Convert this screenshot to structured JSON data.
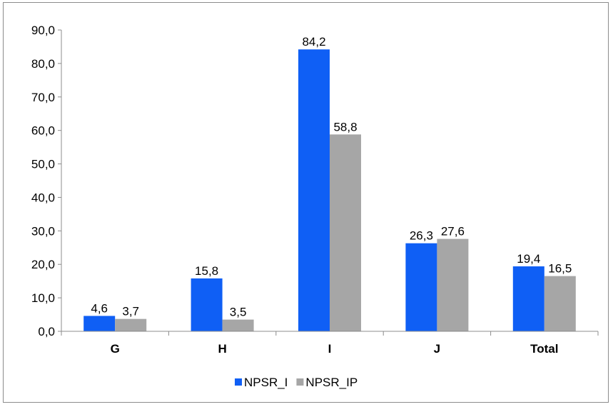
{
  "chart_data": {
    "type": "bar",
    "categories": [
      "G",
      "H",
      "I",
      "J",
      "Total"
    ],
    "series": [
      {
        "name": "NPSR_I",
        "color": "#0f5ff5",
        "values": [
          4.6,
          15.8,
          84.2,
          26.3,
          19.4
        ],
        "labels": [
          "4,6",
          "15,8",
          "84,2",
          "26,3",
          "19,4"
        ]
      },
      {
        "name": "NPSR_IP",
        "color": "#a6a6a6",
        "values": [
          3.7,
          3.5,
          58.8,
          27.6,
          16.5
        ],
        "labels": [
          "3,7",
          "3,5",
          "58,8",
          "27,6",
          "16,5"
        ]
      }
    ],
    "ylim": [
      0,
      90
    ],
    "yticks": [
      0,
      10,
      20,
      30,
      40,
      50,
      60,
      70,
      80,
      90
    ],
    "ytick_labels": [
      "0,0",
      "10,0",
      "20,0",
      "30,0",
      "40,0",
      "50,0",
      "60,0",
      "70,0",
      "80,0",
      "90,0"
    ],
    "grid": false,
    "legend_position": "bottom"
  }
}
